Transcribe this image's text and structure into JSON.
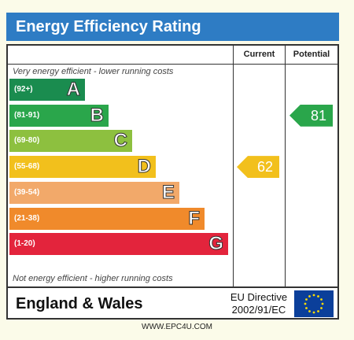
{
  "title": "Energy Efficiency Rating",
  "columns": {
    "current": "Current",
    "potential": "Potential"
  },
  "top_note": "Very energy efficient - lower running costs",
  "bottom_note": "Not energy efficient - higher running costs",
  "colors": {
    "title_bar": "#2e7cc4",
    "A": "#1a8c4f",
    "B": "#2aa64b",
    "C": "#8dc03f",
    "D": "#f2c01c",
    "E": "#f2a96a",
    "F": "#f08a2b",
    "G": "#e3243c"
  },
  "chart_data": {
    "type": "bar",
    "bands": [
      {
        "range": "(92+)",
        "letter": "A"
      },
      {
        "range": "(81-91)",
        "letter": "B"
      },
      {
        "range": "(69-80)",
        "letter": "C"
      },
      {
        "range": "(55-68)",
        "letter": "D"
      },
      {
        "range": "(39-54)",
        "letter": "E"
      },
      {
        "range": "(21-38)",
        "letter": "F"
      },
      {
        "range": "(1-20)",
        "letter": "G"
      }
    ],
    "ratings": {
      "current": {
        "value": "62",
        "band": "D"
      },
      "potential": {
        "value": "81",
        "band": "B"
      }
    }
  },
  "footer": {
    "region": "England & Wales",
    "directive_line1": "EU Directive",
    "directive_line2": "2002/91/EC",
    "flag_icon": "eu-flag-icon"
  },
  "website": "WWW.EPC4U.COM"
}
